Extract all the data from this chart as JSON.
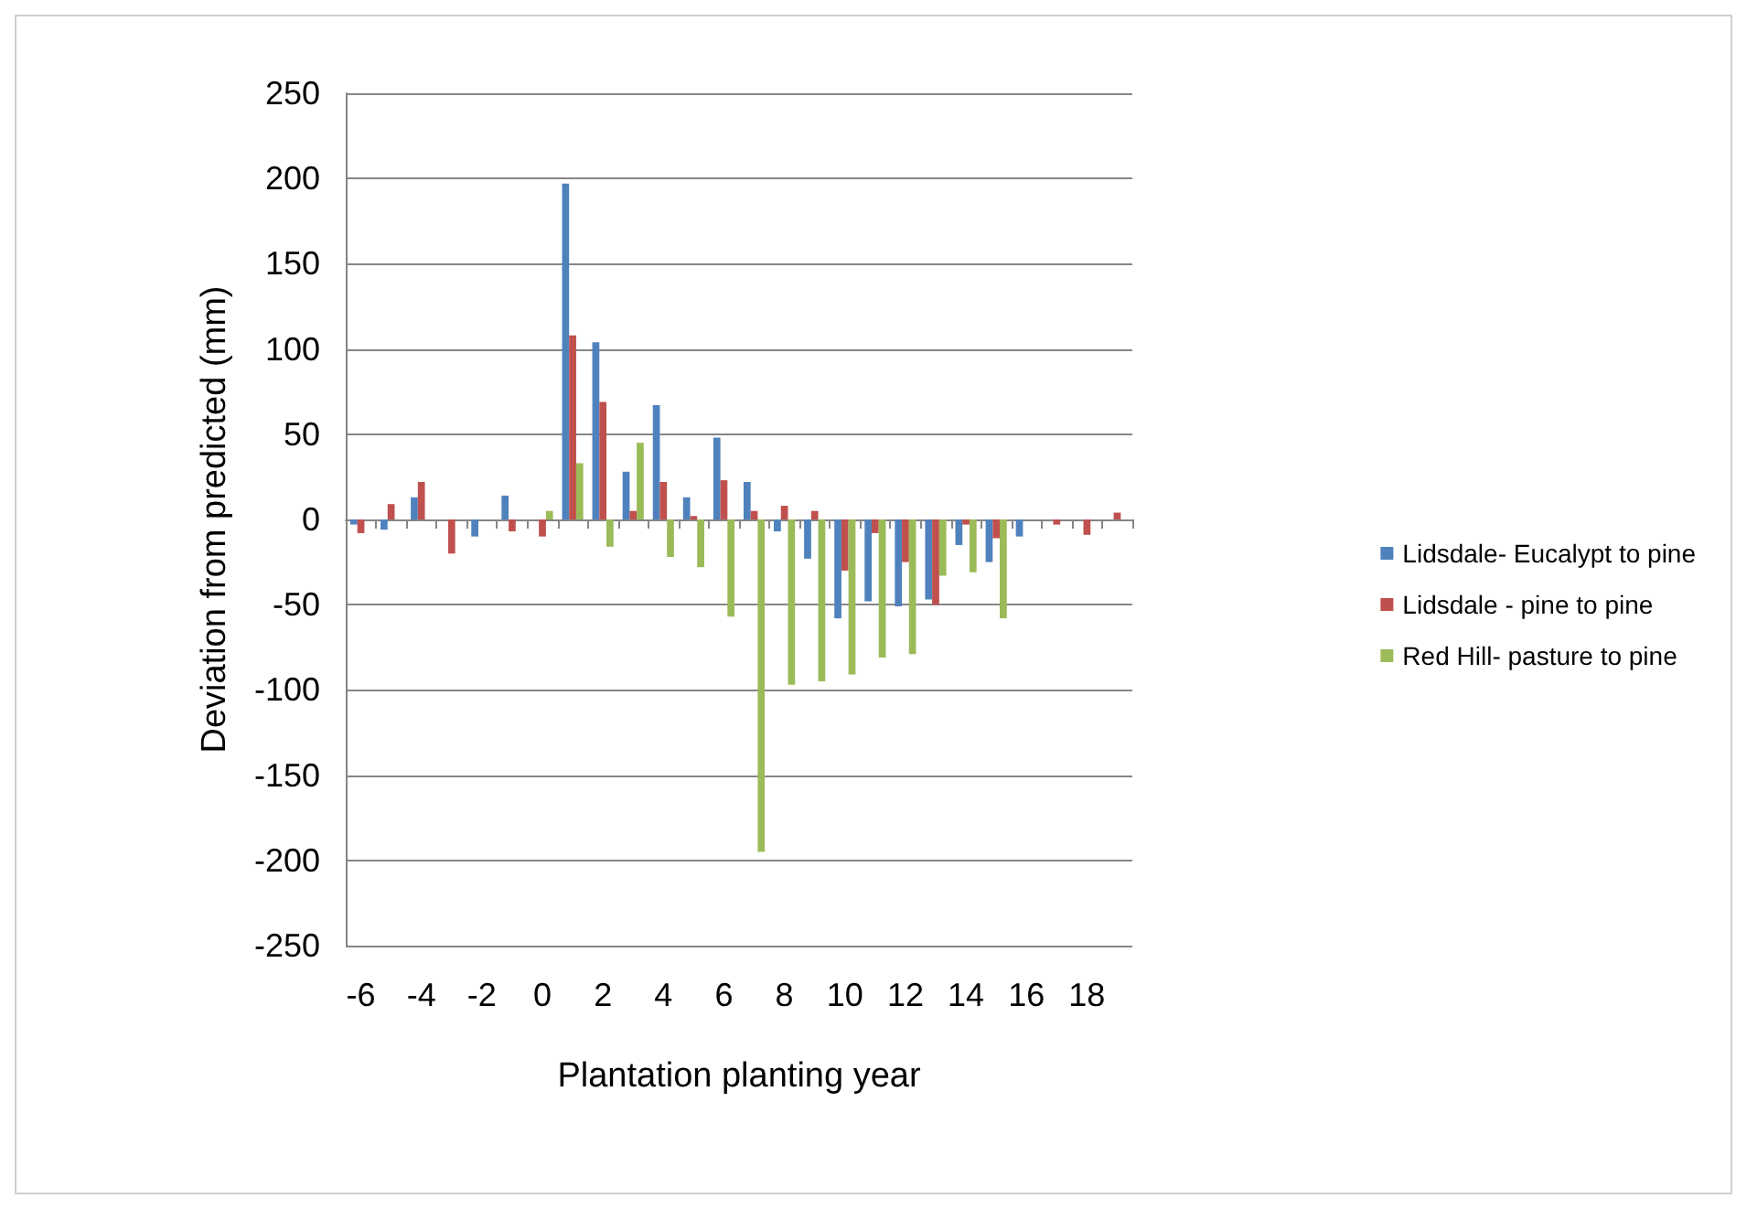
{
  "chart_data": {
    "type": "bar",
    "xlabel": "Plantation planting year",
    "ylabel": "Deviation from predicted (mm)",
    "categories": [
      "-6",
      null,
      "-4",
      null,
      "-2",
      null,
      "0",
      null,
      "2",
      null,
      "4",
      null,
      "6",
      null,
      "8",
      null,
      "10",
      null,
      "12",
      null,
      "14",
      null,
      "16",
      null,
      "18",
      null
    ],
    "series": [
      {
        "name": "Lidsdale- Eucalypt to pine",
        "color": "#4f81bd",
        "values": [
          -3,
          -6,
          13,
          0,
          -10,
          14,
          0,
          197,
          104,
          28,
          67,
          13,
          48,
          22,
          -7,
          -23,
          -58,
          -48,
          -51,
          -47,
          -15,
          -25,
          -10,
          0,
          0,
          0
        ]
      },
      {
        "name": "Lidsdale - pine to pine",
        "color": "#c0504d",
        "values": [
          -8,
          9,
          22,
          -20,
          0,
          -7,
          -10,
          108,
          69,
          5,
          22,
          2,
          23,
          5,
          8,
          5,
          -30,
          -8,
          -25,
          -50,
          -3,
          -11,
          0,
          -3,
          -9,
          4
        ]
      },
      {
        "name": "Red Hill- pasture to pine",
        "color": "#9bbb59",
        "values": [
          0,
          0,
          0,
          0,
          0,
          0,
          5,
          33,
          -16,
          45,
          -22,
          -28,
          -57,
          -195,
          -97,
          -95,
          -91,
          -81,
          -79,
          -33,
          -31,
          -58,
          0,
          0,
          0,
          0
        ]
      }
    ],
    "ylim": [
      -250,
      250
    ],
    "yticks": [
      -250,
      -200,
      -150,
      -100,
      -50,
      0,
      50,
      100,
      150,
      200,
      250
    ],
    "grid": "y",
    "legend": "right"
  }
}
